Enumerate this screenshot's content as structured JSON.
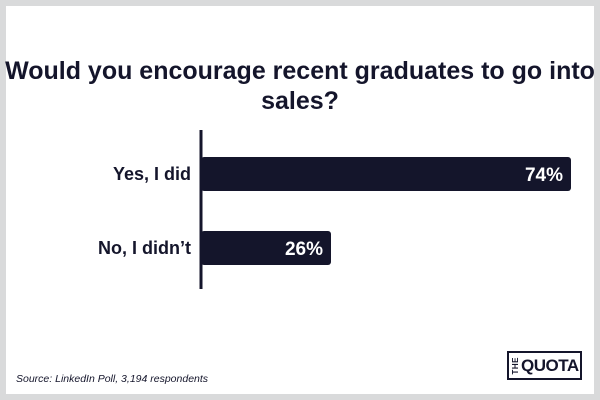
{
  "chart_data": {
    "type": "bar",
    "orientation": "horizontal",
    "title": "Would you encourage recent graduates to go into sales?",
    "categories": [
      "Yes, I did",
      "No, I didn’t"
    ],
    "values": [
      74,
      26
    ],
    "value_labels": [
      "74%",
      "26%"
    ],
    "xlim": [
      0,
      100
    ],
    "grid": false,
    "legend": "none",
    "bar_color": "#14152b",
    "label_color": "#ffffff"
  },
  "footer": {
    "source": "Source: LinkedIn Poll, 3,194 respondents"
  },
  "logo": {
    "small": "THE",
    "large": "QUOTA"
  }
}
